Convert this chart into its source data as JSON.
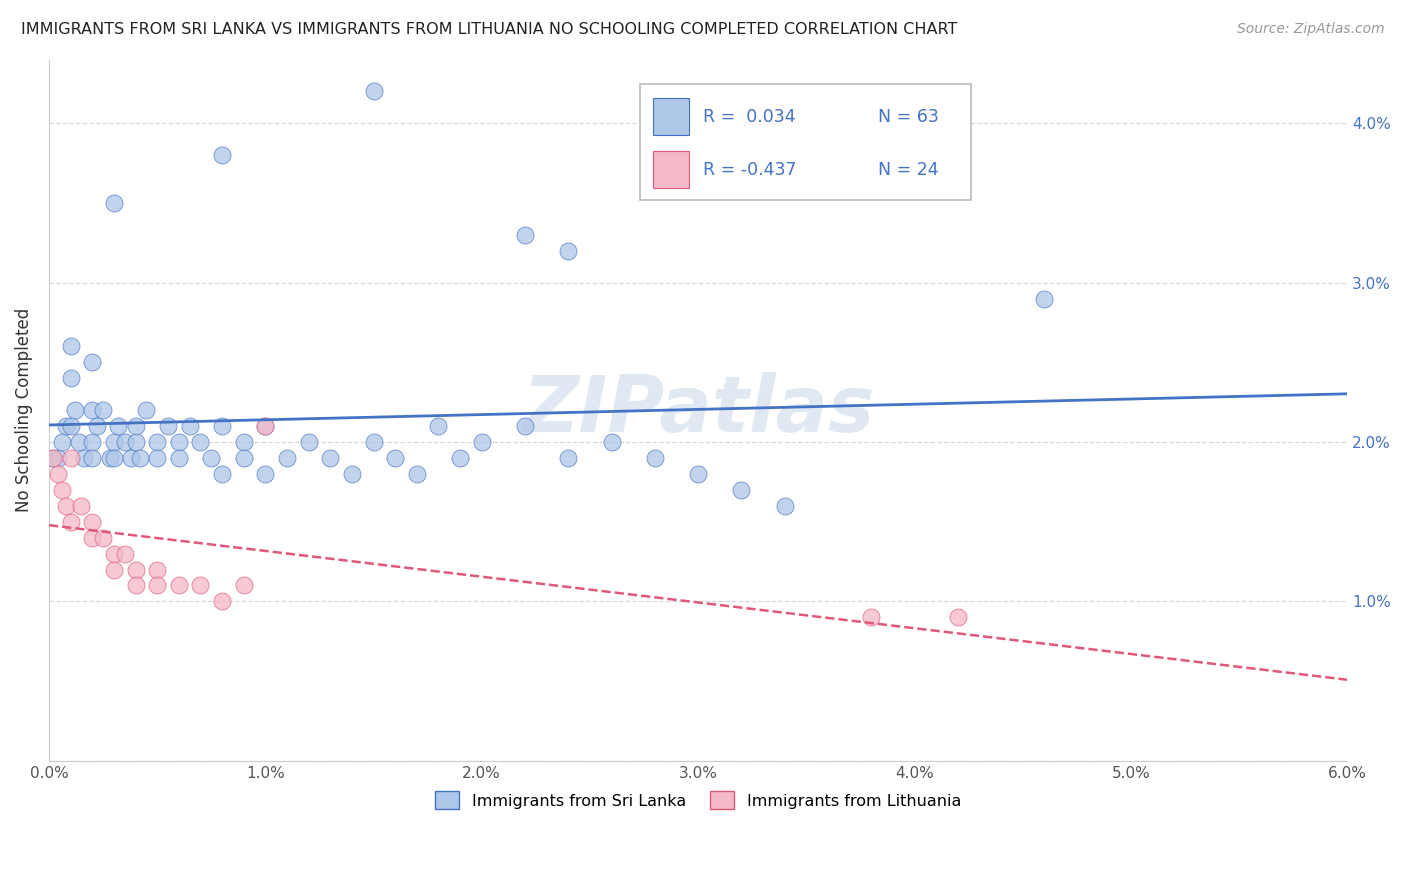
{
  "title": "IMMIGRANTS FROM SRI LANKA VS IMMIGRANTS FROM LITHUANIA NO SCHOOLING COMPLETED CORRELATION CHART",
  "source": "Source: ZipAtlas.com",
  "ylabel_label": "No Schooling Completed",
  "xlim": [
    0.0,
    0.06
  ],
  "ylim": [
    0.0,
    0.044
  ],
  "xticks": [
    0.0,
    0.01,
    0.02,
    0.03,
    0.04,
    0.05,
    0.06
  ],
  "yticks": [
    0.0,
    0.01,
    0.02,
    0.03,
    0.04
  ],
  "color_sri_lanka": "#aec6e8",
  "color_lithuania": "#f4b8c8",
  "line_color_sri_lanka": "#4472c4",
  "line_color_lithuania": "#e05878",
  "watermark": "ZIPatlas",
  "background_color": "#ffffff",
  "grid_color": "#d8d8d8",
  "sri_lanka_x": [
    0.0002,
    0.0004,
    0.0006,
    0.0008,
    0.001,
    0.001,
    0.0012,
    0.0014,
    0.0016,
    0.002,
    0.002,
    0.002,
    0.0022,
    0.0025,
    0.0028,
    0.003,
    0.003,
    0.0032,
    0.0035,
    0.0038,
    0.004,
    0.004,
    0.0042,
    0.0045,
    0.005,
    0.005,
    0.0055,
    0.006,
    0.006,
    0.0065,
    0.007,
    0.0075,
    0.008,
    0.008,
    0.009,
    0.009,
    0.01,
    0.01,
    0.011,
    0.012,
    0.013,
    0.014,
    0.015,
    0.016,
    0.017,
    0.018,
    0.019,
    0.02,
    0.022,
    0.024,
    0.026,
    0.028,
    0.03,
    0.032,
    0.034,
    0.022,
    0.024,
    0.015,
    0.008,
    0.003,
    0.002,
    0.001,
    0.046
  ],
  "sri_lanka_y": [
    0.019,
    0.019,
    0.02,
    0.021,
    0.024,
    0.021,
    0.022,
    0.02,
    0.019,
    0.022,
    0.02,
    0.019,
    0.021,
    0.022,
    0.019,
    0.02,
    0.019,
    0.021,
    0.02,
    0.019,
    0.02,
    0.021,
    0.019,
    0.022,
    0.02,
    0.019,
    0.021,
    0.02,
    0.019,
    0.021,
    0.02,
    0.019,
    0.021,
    0.018,
    0.02,
    0.019,
    0.021,
    0.018,
    0.019,
    0.02,
    0.019,
    0.018,
    0.02,
    0.019,
    0.018,
    0.021,
    0.019,
    0.02,
    0.021,
    0.019,
    0.02,
    0.019,
    0.018,
    0.017,
    0.016,
    0.033,
    0.032,
    0.042,
    0.038,
    0.035,
    0.025,
    0.026,
    0.029
  ],
  "lithuania_x": [
    0.0002,
    0.0004,
    0.0006,
    0.0008,
    0.001,
    0.001,
    0.0015,
    0.002,
    0.002,
    0.0025,
    0.003,
    0.003,
    0.0035,
    0.004,
    0.004,
    0.005,
    0.005,
    0.006,
    0.007,
    0.008,
    0.009,
    0.01,
    0.038,
    0.042
  ],
  "lithuania_y": [
    0.019,
    0.018,
    0.017,
    0.016,
    0.015,
    0.019,
    0.016,
    0.015,
    0.014,
    0.014,
    0.013,
    0.012,
    0.013,
    0.012,
    0.011,
    0.012,
    0.011,
    0.011,
    0.011,
    0.01,
    0.011,
    0.021,
    0.009,
    0.009
  ],
  "legend_r1": "R =  0.034",
  "legend_n1": "N = 63",
  "legend_r2": "R = -0.437",
  "legend_n2": "N = 24"
}
